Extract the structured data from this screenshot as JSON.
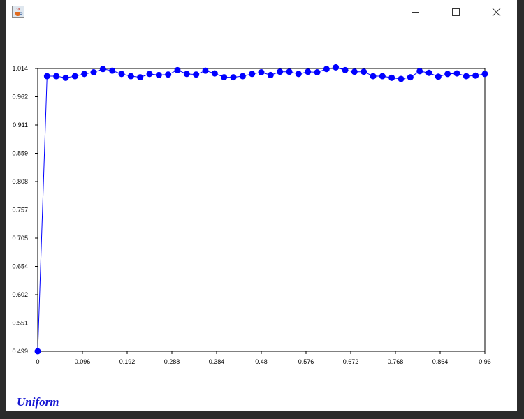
{
  "window": {
    "icon": "java-cup-icon",
    "controls": [
      "minimize-icon",
      "maximize-icon",
      "close-icon"
    ]
  },
  "chart_data": {
    "type": "line",
    "title": "",
    "xlabel": "",
    "ylabel": "",
    "x_ticks": [
      "0",
      "0.096",
      "0.192",
      "0.288",
      "0.384",
      "0.48",
      "0.576",
      "0.672",
      "0.768",
      "0.864",
      "0.96"
    ],
    "y_ticks": [
      "0.499",
      "0.551",
      "0.602",
      "0.654",
      "0.705",
      "0.757",
      "0.808",
      "0.859",
      "0.911",
      "0.962",
      "1.014"
    ],
    "xlim": [
      0,
      0.96
    ],
    "ylim": [
      0.499,
      1.014
    ],
    "grid": false,
    "series": [
      {
        "color": "#0000ff",
        "marker": "circle",
        "x": [
          0,
          0.02,
          0.04,
          0.06,
          0.08,
          0.1,
          0.12,
          0.14,
          0.16,
          0.18,
          0.2,
          0.22,
          0.24,
          0.26,
          0.28,
          0.3,
          0.32,
          0.34,
          0.36,
          0.38,
          0.4,
          0.42,
          0.44,
          0.46,
          0.48,
          0.5,
          0.52,
          0.54,
          0.56,
          0.58,
          0.6,
          0.62,
          0.64,
          0.66,
          0.68,
          0.7,
          0.72,
          0.74,
          0.76,
          0.78,
          0.8,
          0.82,
          0.84,
          0.86,
          0.88,
          0.9,
          0.92,
          0.94,
          0.96
        ],
        "y": [
          0.499,
          1.0,
          1.0,
          0.997,
          1.0,
          1.004,
          1.007,
          1.013,
          1.01,
          1.004,
          1.0,
          0.998,
          1.004,
          1.002,
          1.003,
          1.011,
          1.004,
          1.003,
          1.01,
          1.005,
          0.998,
          0.998,
          1.0,
          1.004,
          1.007,
          1.002,
          1.008,
          1.008,
          1.004,
          1.008,
          1.007,
          1.013,
          1.016,
          1.011,
          1.008,
          1.008,
          1.0,
          1.0,
          0.997,
          0.995,
          0.998,
          1.009,
          1.006,
          0.999,
          1.004,
          1.005,
          1.0,
          1.001,
          1.004
        ]
      }
    ]
  },
  "status": {
    "label": "Uniform",
    "color": "#1414d2"
  }
}
